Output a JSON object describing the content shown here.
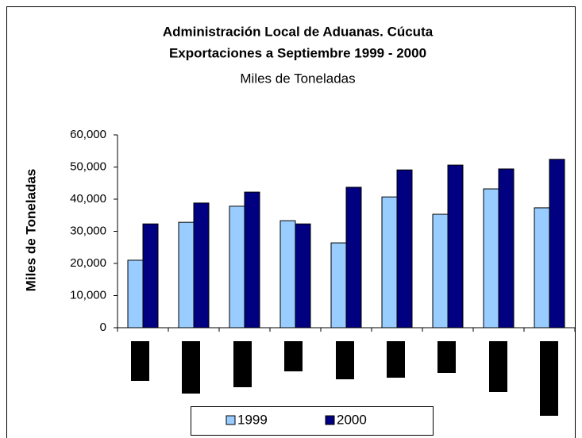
{
  "chart_data": {
    "type": "bar",
    "title": "Administración Local de Aduanas. Cúcuta",
    "subtitle_bold": "Exportaciones a Septiembre 1999 - 2000",
    "subtitle": "Miles de Toneladas",
    "y_label": "Miles de Toneladas",
    "categories": [
      null,
      null,
      null,
      null,
      null,
      null,
      null,
      null,
      null
    ],
    "series": [
      {
        "name": "1999",
        "color": "#99ccff",
        "values": [
          21000,
          32800,
          37800,
          33300,
          26400,
          40700,
          35300,
          43200,
          37300
        ]
      },
      {
        "name": "2000",
        "color": "#000080",
        "values": [
          32300,
          38800,
          42200,
          32300,
          43700,
          49100,
          50600,
          49400,
          52400
        ]
      }
    ],
    "ylim": [
      0,
      60000
    ],
    "yticks": [
      0,
      {
        "value": 10000,
        "label": "10,000"
      },
      {
        "value": 20000,
        "label": "20,000"
      },
      {
        "value": 30000,
        "label": "30,000"
      },
      {
        "value": 40000,
        "label": "40,000"
      },
      {
        "value": 50000,
        "label": "50,000"
      },
      {
        "value": 60000,
        "label": "60,000"
      }
    ],
    "legend": "bottom"
  }
}
